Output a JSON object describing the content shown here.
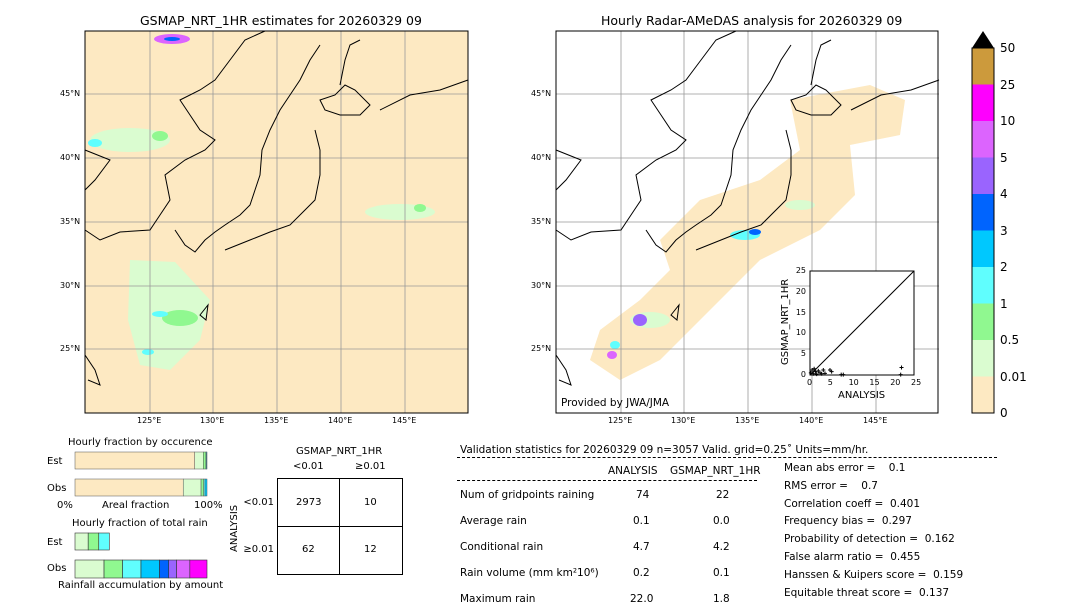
{
  "left_map": {
    "title": "GSMAP_NRT_1HR estimates for 20260329 09"
  },
  "right_map": {
    "title": "Hourly Radar-AMeDAS analysis for 20260329 09",
    "credit": "Provided by JWA/JMA"
  },
  "lon_ticks": [
    "125°E",
    "130°E",
    "135°E",
    "140°E",
    "145°E"
  ],
  "lat_ticks": [
    "45°N",
    "40°N",
    "35°N",
    "30°N",
    "25°N"
  ],
  "colorbar": {
    "labels": [
      "50",
      "25",
      "10",
      "5",
      "4",
      "3",
      "2",
      "1",
      "0.5",
      "0.01",
      "0"
    ],
    "colors": [
      "#cc9a3c",
      "#fe00fe",
      "#dc64fe",
      "#9a64fe",
      "#0064fe",
      "#00c8fe",
      "#60fefe",
      "#90f890",
      "#dafcd0",
      "#fde9c2"
    ],
    "extend_color": "#000000"
  },
  "chart_data": [
    {
      "type": "scatter",
      "xlabel": "ANALYSIS",
      "ylabel": "GSMAP_NRT_1HR",
      "xlim": [
        0,
        25
      ],
      "ylim": [
        0,
        25
      ],
      "xticks": [
        "0",
        "5",
        "10",
        "15",
        "20",
        "25"
      ],
      "yticks": [
        "0",
        "5",
        "10",
        "15",
        "20",
        "25"
      ],
      "points": [
        [
          0.2,
          0.5
        ],
        [
          0.5,
          1.2
        ],
        [
          0.8,
          0.3
        ],
        [
          1.0,
          1.5
        ],
        [
          1.3,
          0.8
        ],
        [
          1.6,
          0.2
        ],
        [
          2.0,
          1.0
        ],
        [
          2.4,
          0.5
        ],
        [
          2.8,
          0.3
        ],
        [
          3.2,
          1.2
        ],
        [
          3.6,
          0.4
        ],
        [
          4.8,
          1.2
        ],
        [
          5.2,
          0.8
        ],
        [
          7.5,
          0.1
        ],
        [
          8.0,
          0.1
        ],
        [
          21.8,
          0.1
        ],
        [
          22.0,
          1.8
        ]
      ]
    },
    {
      "type": "bar",
      "title": "Hourly fraction by occurence",
      "xlabel": "Areal fraction",
      "xtick_left": "0%",
      "xtick_right": "100%",
      "categories": [
        "Est",
        "Obs"
      ],
      "series": [
        {
          "values": [
            0.907,
            0.82
          ]
        },
        {
          "values": [
            0.065,
            0.135
          ]
        },
        {
          "values": [
            0.02,
            0.02
          ]
        },
        {
          "values": [
            0.004,
            0.01
          ]
        },
        {
          "values": [
            0.004,
            0.015
          ]
        }
      ]
    },
    {
      "type": "bar",
      "title": "Hourly fraction of total rain",
      "xlabel": "Rainfall accumulation by amount",
      "categories": [
        "Est",
        "Obs"
      ],
      "est": [
        0.1,
        0.08,
        0.08
      ],
      "obs": [
        0.22,
        0.14,
        0.14,
        0.14,
        0.07,
        0.06,
        0.1,
        0.13
      ]
    }
  ],
  "contingency": {
    "title": "GSMAP_NRT_1HR",
    "col_labels": [
      "<0.01",
      "≥0.01"
    ],
    "row_title": "ANALYSIS",
    "row_labels": [
      "<0.01",
      "≥0.01"
    ],
    "cells": [
      [
        "2973",
        "10"
      ],
      [
        "62",
        "12"
      ]
    ]
  },
  "stats": {
    "header": "Validation statistics for 20260329 09  n=3057 Valid. grid=0.25˚ Units=mm/hr.",
    "col_headers": [
      "ANALYSIS",
      "GSMAP_NRT_1HR"
    ],
    "rows": [
      {
        "label": "Num of gridpoints raining",
        "a": "74",
        "b": "22"
      },
      {
        "label": "Average rain",
        "a": "0.1",
        "b": "0.0"
      },
      {
        "label": "Conditional rain",
        "a": "4.7",
        "b": "4.2"
      },
      {
        "label": "Rain volume (mm km²10⁶)",
        "a": "0.2",
        "b": "0.1"
      },
      {
        "label": "Maximum rain",
        "a": "22.0",
        "b": "1.8"
      }
    ],
    "scores": [
      "Mean abs error =    0.1",
      "RMS error =    0.7",
      "Correlation coeff =  0.401",
      "Frequency bias =  0.297",
      "Probability of detection =  0.162",
      "False alarm ratio =  0.455",
      "Hanssen & Kuipers score =  0.159",
      "Equitable threat score =  0.137"
    ]
  }
}
